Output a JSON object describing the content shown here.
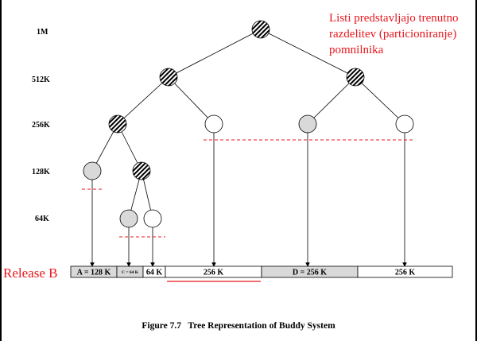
{
  "levels": [
    "1M",
    "512K",
    "256K",
    "128K",
    "64K"
  ],
  "annotation": {
    "lines": [
      "Listi predstavljajo trenutno",
      "razdelitev (particioniranje)",
      "pomnilnika"
    ]
  },
  "release_label": "Release B",
  "blocks": [
    {
      "label": "A = 128 K",
      "state": "allocated"
    },
    {
      "label": "C = 64 K",
      "state": "allocated"
    },
    {
      "label": "64 K",
      "state": "free"
    },
    {
      "label": "256 K",
      "state": "free"
    },
    {
      "label": "D = 256 K",
      "state": "allocated"
    },
    {
      "label": "256 K",
      "state": "free"
    }
  ],
  "caption": "Figure 7.7   Tree Representation of Buddy System",
  "colors": {
    "annotation": "#e8171d",
    "leaf_allocated": "#d9d9d9",
    "leaf_free": "#ffffff",
    "split_node_hatch": "#000000"
  }
}
